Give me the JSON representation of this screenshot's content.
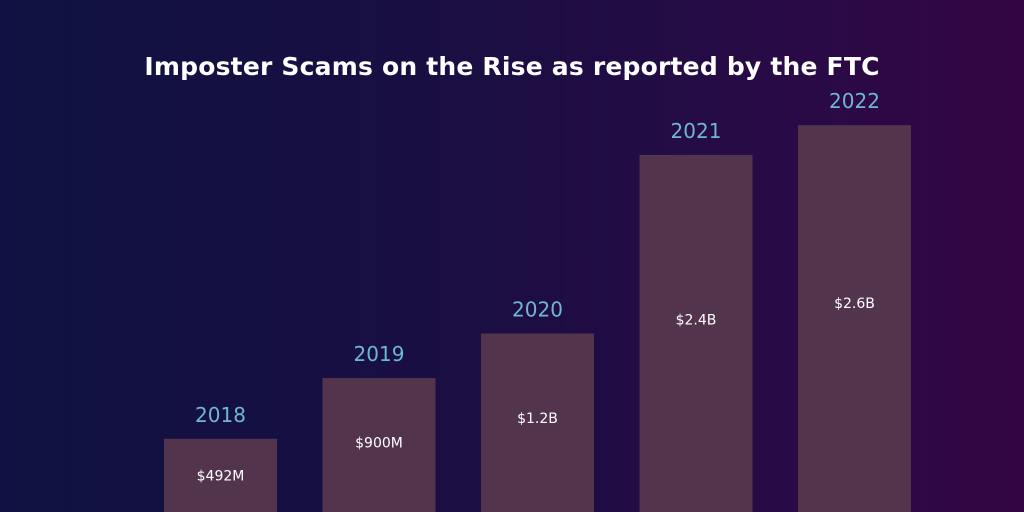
{
  "chart_data": {
    "type": "bar",
    "title": "Imposter Scams on the Rise as reported by the FTC",
    "categories": [
      "2018",
      "2019",
      "2020",
      "2021",
      "2022"
    ],
    "values": [
      492,
      900,
      1200,
      2400,
      2600
    ],
    "value_unit": "millions USD",
    "data_labels": [
      "$492M",
      "$900M",
      "$1.2B",
      "$2.4B",
      "$2.6B"
    ],
    "bar_color": "#52344d",
    "category_label_color": "#6fb6d6",
    "data_label_color": "#ffffff",
    "grid": false,
    "legend": "none"
  }
}
